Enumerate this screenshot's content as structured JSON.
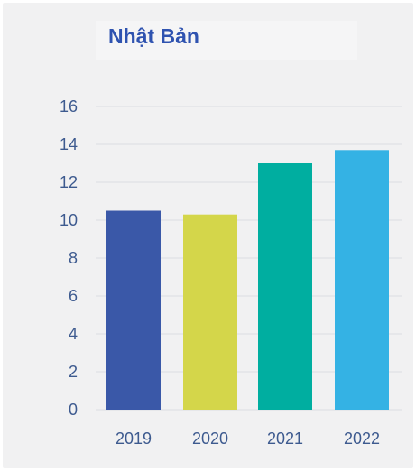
{
  "chart_data": {
    "type": "bar",
    "title": "Nhật Bản",
    "xlabel": "",
    "ylabel": "",
    "categories": [
      "2019",
      "2020",
      "2021",
      "2022"
    ],
    "values": [
      10.5,
      10.3,
      13.0,
      13.7
    ],
    "colors": [
      "#3a58a8",
      "#d4d64a",
      "#00aea0",
      "#34b2e4"
    ],
    "ylim": [
      0,
      16
    ],
    "yticks": [
      "0",
      "2",
      "4",
      "6",
      "8",
      "10",
      "12",
      "14",
      "16"
    ],
    "grid": true,
    "legend": "none"
  }
}
